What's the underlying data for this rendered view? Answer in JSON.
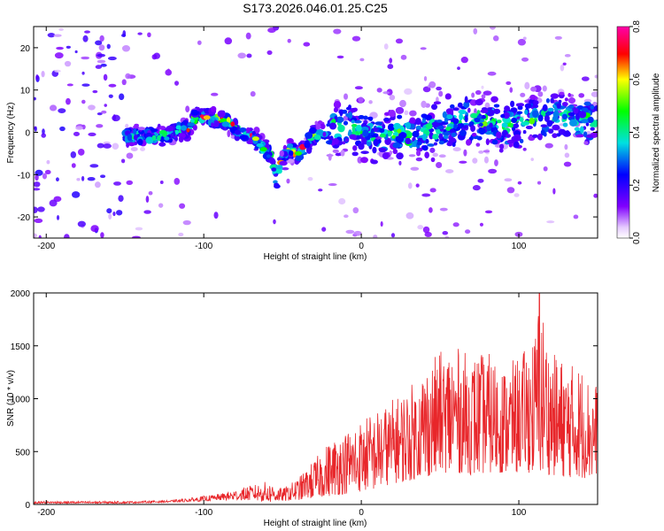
{
  "title": "S173.2026.046.01.25.C25",
  "chart_data": [
    {
      "type": "heatmap",
      "title": "S173.2026.046.01.25.C25",
      "xlabel": "Height of straight line (km)",
      "ylabel": "Frequency (Hz)",
      "xlim": [
        -208,
        150
      ],
      "ylim": [
        -25,
        25
      ],
      "xticks": [
        -200,
        -100,
        0,
        100
      ],
      "yticks": [
        -20,
        -10,
        0,
        10,
        20
      ],
      "colorbar": {
        "label": "Normalized spectral amplitude",
        "range": [
          0.0,
          0.8
        ],
        "ticks": [
          "0.0",
          "0.2",
          "0.4",
          "0.6",
          "0.8"
        ]
      },
      "ridge": {
        "x": [
          -150,
          -130,
          -120,
          -110,
          -105,
          -95,
          -85,
          -75,
          -68,
          -62,
          -57,
          -54,
          -50,
          -45,
          -40,
          -35,
          -30,
          -20,
          -10,
          0,
          10,
          20,
          30,
          40,
          50,
          60,
          70,
          80,
          90,
          100,
          110,
          120,
          130,
          140,
          150
        ],
        "y": [
          -1,
          -1,
          0,
          1,
          3.5,
          3.5,
          2.5,
          0,
          -1.5,
          -4,
          -5,
          -12,
          -6,
          -4,
          -5,
          -3,
          -1,
          1,
          2,
          0,
          -1,
          0,
          -1,
          0,
          1,
          2,
          3,
          3,
          1,
          2,
          3,
          4,
          4,
          3,
          3
        ],
        "peak_amplitude": 0.8
      }
    },
    {
      "type": "line",
      "xlabel": "Height of straight line (km)",
      "ylabel": "SNR (10 * v/v)",
      "xlim": [
        -208,
        150
      ],
      "ylim": [
        0,
        2000
      ],
      "xticks": [
        -200,
        -100,
        0,
        100
      ],
      "yticks": [
        0,
        500,
        1000,
        1500,
        2000
      ],
      "series": [
        {
          "name": "SNR",
          "color": "#e8262a",
          "envelope_x": [
            -208,
            -150,
            -120,
            -110,
            -100,
            -90,
            -80,
            -70,
            -60,
            -50,
            -40,
            -30,
            -20,
            -10,
            0,
            10,
            20,
            30,
            40,
            50,
            60,
            70,
            80,
            90,
            100,
            110,
            113,
            120,
            130,
            140,
            150
          ],
          "envelope_low": [
            10,
            10,
            20,
            25,
            30,
            40,
            40,
            40,
            20,
            30,
            40,
            60,
            80,
            100,
            120,
            150,
            200,
            220,
            250,
            300,
            300,
            280,
            300,
            300,
            300,
            300,
            300,
            280,
            260,
            250,
            250
          ],
          "envelope_high": [
            30,
            30,
            40,
            60,
            80,
            100,
            140,
            180,
            220,
            150,
            250,
            420,
            600,
            700,
            800,
            900,
            1000,
            1100,
            1300,
            1450,
            1500,
            1400,
            1450,
            1300,
            1400,
            1600,
            2000,
            1450,
            1350,
            1300,
            1150
          ]
        }
      ]
    }
  ]
}
